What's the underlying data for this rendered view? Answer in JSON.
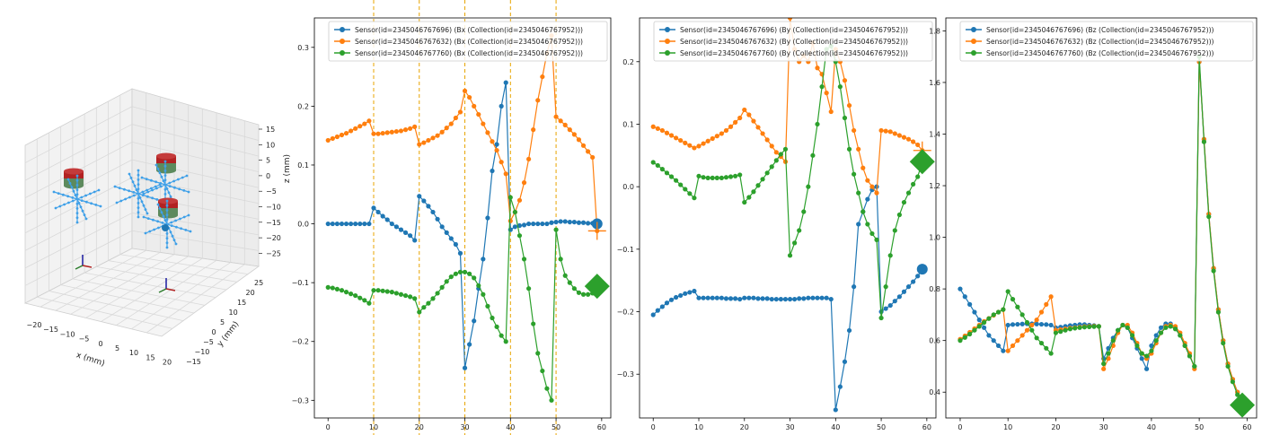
{
  "colors": {
    "blue": "#1f77b4",
    "orange": "#ff7f0e",
    "green": "#2ca02c",
    "vline": "#e8a400",
    "grid3d": "#d9d9d9",
    "magnet_red": "#b22222",
    "magnet_green": "#5d8a5d",
    "sensor_cyan": "#3fa0e8"
  },
  "scene3d": {
    "xlabel": "x (mm)",
    "ylabel": "y (mm)",
    "zlabel": "z (mm)",
    "xticks": [
      "−20",
      "−15",
      "−10",
      "−5",
      "0",
      "5",
      "10",
      "15",
      "20"
    ],
    "yticks": [
      "−15",
      "−10",
      "−5",
      "0",
      "5",
      "10",
      "15",
      "20",
      "25"
    ],
    "zticks": [
      "15",
      "10",
      "5",
      "0",
      "−5",
      "−10",
      "−15",
      "−20",
      "−25"
    ]
  },
  "chart_data": [
    {
      "type": "line",
      "component": "Bx",
      "xlim": [
        -3,
        62
      ],
      "ylim": [
        -0.33,
        0.35
      ],
      "xticks": [
        0,
        10,
        20,
        30,
        40,
        50,
        60
      ],
      "yticks": [
        -0.3,
        -0.2,
        -0.1,
        0.0,
        0.1,
        0.2,
        0.3
      ],
      "vlines": [
        10,
        20,
        30,
        40,
        50
      ],
      "series": [
        {
          "name": "Sensor(id=2345046767696) (Bx (Collection(id=2345046767952)))",
          "color": "blue",
          "endmarker": "circle",
          "values": [
            0,
            0,
            0,
            0,
            0,
            0,
            0,
            0,
            0,
            0,
            0.027,
            0.02,
            0.013,
            0.007,
            0,
            -0.005,
            -0.01,
            -0.015,
            -0.02,
            -0.028,
            0.047,
            0.039,
            0.03,
            0.02,
            0.008,
            -0.005,
            -0.015,
            -0.025,
            -0.035,
            -0.05,
            -0.245,
            -0.205,
            -0.165,
            -0.11,
            -0.06,
            0.01,
            0.09,
            0.135,
            0.2,
            0.24,
            -0.01,
            -0.005,
            -0.003,
            -0.002,
            0,
            0,
            0,
            0,
            0,
            0.002,
            0.003,
            0.004,
            0.004,
            0.003,
            0.003,
            0.002,
            0.002,
            0.001,
            0.001,
            0
          ]
        },
        {
          "name": "Sensor(id=2345046767632) (Bx (Collection(id=2345046767952)))",
          "color": "orange",
          "endmarker": "plus",
          "values": [
            0.142,
            0.145,
            0.148,
            0.151,
            0.154,
            0.158,
            0.162,
            0.166,
            0.17,
            0.175,
            0.153,
            0.153,
            0.154,
            0.155,
            0.156,
            0.157,
            0.158,
            0.16,
            0.162,
            0.165,
            0.135,
            0.138,
            0.142,
            0.146,
            0.15,
            0.156,
            0.163,
            0.17,
            0.18,
            0.19,
            0.226,
            0.215,
            0.2,
            0.186,
            0.17,
            0.155,
            0.14,
            0.125,
            0.105,
            0.085,
            0.005,
            0.02,
            0.04,
            0.07,
            0.11,
            0.16,
            0.21,
            0.25,
            0.29,
            0.32,
            0.182,
            0.175,
            0.168,
            0.16,
            0.152,
            0.143,
            0.133,
            0.123,
            0.113,
            -0.012
          ]
        },
        {
          "name": "Sensor(id=2345046767760) (Bx (Collection(id=2345046767952)))",
          "color": "green",
          "endmarker": "diamond",
          "values": [
            -0.108,
            -0.109,
            -0.111,
            -0.113,
            -0.116,
            -0.119,
            -0.122,
            -0.126,
            -0.13,
            -0.135,
            -0.113,
            -0.113,
            -0.114,
            -0.115,
            -0.116,
            -0.118,
            -0.12,
            -0.122,
            -0.124,
            -0.127,
            -0.15,
            -0.142,
            -0.135,
            -0.127,
            -0.118,
            -0.108,
            -0.098,
            -0.09,
            -0.085,
            -0.082,
            -0.082,
            -0.085,
            -0.092,
            -0.105,
            -0.12,
            -0.14,
            -0.16,
            -0.175,
            -0.19,
            -0.2,
            0.045,
            0.02,
            -0.02,
            -0.06,
            -0.11,
            -0.17,
            -0.22,
            -0.25,
            -0.28,
            -0.3,
            -0.01,
            -0.06,
            -0.088,
            -0.1,
            -0.11,
            -0.117,
            -0.12,
            -0.12,
            -0.118,
            -0.106
          ]
        }
      ]
    },
    {
      "type": "line",
      "component": "By",
      "xlim": [
        -3,
        62
      ],
      "ylim": [
        -0.37,
        0.27
      ],
      "xticks": [
        0,
        10,
        20,
        30,
        40,
        50,
        60
      ],
      "yticks": [
        -0.3,
        -0.2,
        -0.1,
        0.0,
        0.1,
        0.2
      ],
      "series": [
        {
          "name": "Sensor(id=2345046767696) (By (Collection(id=2345046767952)))",
          "color": "blue",
          "endmarker": "circle",
          "values": [
            -0.205,
            -0.198,
            -0.192,
            -0.186,
            -0.181,
            -0.177,
            -0.174,
            -0.171,
            -0.169,
            -0.167,
            -0.178,
            -0.178,
            -0.178,
            -0.178,
            -0.178,
            -0.178,
            -0.179,
            -0.179,
            -0.179,
            -0.18,
            -0.178,
            -0.178,
            -0.178,
            -0.179,
            -0.179,
            -0.179,
            -0.18,
            -0.18,
            -0.18,
            -0.18,
            -0.18,
            -0.18,
            -0.179,
            -0.179,
            -0.178,
            -0.178,
            -0.178,
            -0.178,
            -0.178,
            -0.18,
            -0.357,
            -0.32,
            -0.28,
            -0.23,
            -0.16,
            -0.06,
            -0.04,
            -0.02,
            -0.005,
            0,
            -0.2,
            -0.195,
            -0.19,
            -0.183,
            -0.176,
            -0.168,
            -0.16,
            -0.152,
            -0.143,
            -0.132
          ]
        },
        {
          "name": "Sensor(id=2345046767632) (By (Collection(id=2345046767952)))",
          "color": "orange",
          "endmarker": "plus",
          "values": [
            0.096,
            0.093,
            0.09,
            0.086,
            0.082,
            0.078,
            0.074,
            0.07,
            0.066,
            0.062,
            0.065,
            0.069,
            0.073,
            0.077,
            0.081,
            0.085,
            0.09,
            0.096,
            0.103,
            0.11,
            0.123,
            0.115,
            0.105,
            0.095,
            0.085,
            0.075,
            0.065,
            0.055,
            0.048,
            0.04,
            0.27,
            0.22,
            0.2,
            0.21,
            0.2,
            0.23,
            0.19,
            0.18,
            0.15,
            0.12,
            0.22,
            0.2,
            0.17,
            0.13,
            0.09,
            0.06,
            0.03,
            0.01,
            0,
            -0.01,
            0.09,
            0.089,
            0.088,
            0.085,
            0.082,
            0.079,
            0.076,
            0.072,
            0.067,
            0.058
          ]
        },
        {
          "name": "Sensor(id=2345046767760) (By (Collection(id=2345046767952)))",
          "color": "green",
          "endmarker": "diamond",
          "values": [
            0.039,
            0.034,
            0.028,
            0.022,
            0.016,
            0.01,
            0.003,
            -0.004,
            -0.011,
            -0.018,
            0.017,
            0.015,
            0.014,
            0.014,
            0.014,
            0.014,
            0.015,
            0.016,
            0.017,
            0.019,
            -0.025,
            -0.017,
            -0.008,
            0.002,
            0.012,
            0.022,
            0.032,
            0.042,
            0.052,
            0.06,
            -0.11,
            -0.09,
            -0.07,
            -0.04,
            0,
            0.05,
            0.1,
            0.16,
            0.22,
            0.225,
            0.2,
            0.16,
            0.11,
            0.06,
            0.02,
            -0.01,
            -0.04,
            -0.06,
            -0.075,
            -0.085,
            -0.21,
            -0.16,
            -0.11,
            -0.07,
            -0.045,
            -0.025,
            -0.01,
            0.004,
            0.016,
            0.04
          ]
        }
      ]
    },
    {
      "type": "line",
      "component": "Bz",
      "xlim": [
        -3,
        62
      ],
      "ylim": [
        0.3,
        1.85
      ],
      "xticks": [
        0,
        10,
        20,
        30,
        40,
        50,
        60
      ],
      "yticks": [
        0.4,
        0.6,
        0.8,
        1.0,
        1.2,
        1.4,
        1.6,
        1.8
      ],
      "series": [
        {
          "name": "Sensor(id=2345046767696) (Bz (Collection(id=2345046767952)))",
          "color": "blue",
          "endmarker": "circle",
          "values": [
            0.8,
            0.77,
            0.74,
            0.71,
            0.68,
            0.65,
            0.62,
            0.6,
            0.58,
            0.56,
            0.66,
            0.662,
            0.663,
            0.664,
            0.665,
            0.665,
            0.664,
            0.663,
            0.662,
            0.66,
            0.65,
            0.652,
            0.655,
            0.658,
            0.66,
            0.662,
            0.662,
            0.66,
            0.658,
            0.655,
            0.53,
            0.57,
            0.61,
            0.64,
            0.66,
            0.65,
            0.61,
            0.57,
            0.53,
            0.49,
            0.58,
            0.62,
            0.65,
            0.665,
            0.665,
            0.65,
            0.62,
            0.58,
            0.54,
            0.5,
            1.68,
            1.38,
            1.09,
            0.88,
            0.72,
            0.6,
            0.51,
            0.45,
            0.4,
            0.35
          ]
        },
        {
          "name": "Sensor(id=2345046767632) (Bz (Collection(id=2345046767952)))",
          "color": "orange",
          "endmarker": "plus",
          "values": [
            0.605,
            0.618,
            0.632,
            0.646,
            0.66,
            0.674,
            0.686,
            0.698,
            0.71,
            0.72,
            0.56,
            0.58,
            0.6,
            0.62,
            0.64,
            0.66,
            0.68,
            0.71,
            0.74,
            0.77,
            0.64,
            0.642,
            0.645,
            0.648,
            0.65,
            0.652,
            0.654,
            0.655,
            0.656,
            0.655,
            0.49,
            0.53,
            0.58,
            0.63,
            0.66,
            0.66,
            0.63,
            0.59,
            0.55,
            0.53,
            0.55,
            0.59,
            0.63,
            0.655,
            0.66,
            0.655,
            0.63,
            0.59,
            0.55,
            0.49,
            1.68,
            1.38,
            1.09,
            0.88,
            0.72,
            0.6,
            0.51,
            0.45,
            0.4,
            0.35
          ]
        },
        {
          "name": "Sensor(id=2345046767760) (Bz (Collection(id=2345046767952)))",
          "color": "green",
          "endmarker": "diamond",
          "values": [
            0.6,
            0.612,
            0.625,
            0.64,
            0.655,
            0.67,
            0.685,
            0.7,
            0.71,
            0.72,
            0.79,
            0.76,
            0.73,
            0.7,
            0.67,
            0.64,
            0.61,
            0.59,
            0.57,
            0.55,
            0.63,
            0.635,
            0.64,
            0.645,
            0.648,
            0.65,
            0.652,
            0.653,
            0.654,
            0.655,
            0.51,
            0.55,
            0.6,
            0.64,
            0.66,
            0.65,
            0.62,
            0.58,
            0.55,
            0.54,
            0.56,
            0.6,
            0.63,
            0.65,
            0.655,
            0.645,
            0.62,
            0.58,
            0.54,
            0.5,
            1.7,
            1.37,
            1.08,
            0.87,
            0.71,
            0.59,
            0.5,
            0.44,
            0.39,
            0.35
          ]
        }
      ]
    }
  ]
}
